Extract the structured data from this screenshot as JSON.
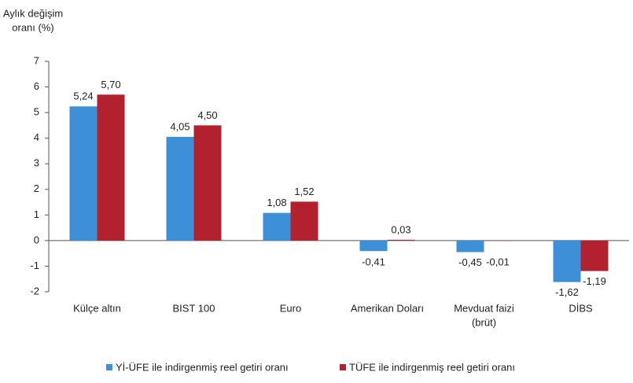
{
  "chart_data": {
    "type": "bar",
    "ylabel": [
      "Aylık değişim",
      "oranı (%)"
    ],
    "categories": [
      [
        "Külçe altın"
      ],
      [
        "BIST 100"
      ],
      [
        "Euro"
      ],
      [
        "Amerikan Doları"
      ],
      [
        "Mevduat faizi",
        "(brüt)"
      ],
      [
        "DİBS"
      ]
    ],
    "series": [
      {
        "name": "Yİ-ÜFE ile indirgenmiş reel getiri oranı",
        "color": "#3d8fd8",
        "values": [
          5.24,
          4.05,
          1.08,
          -0.41,
          -0.45,
          -1.62
        ],
        "value_labels": [
          "5,24",
          "4,05",
          "1,08",
          "-0,41",
          "-0,45",
          "-1,62"
        ]
      },
      {
        "name": "TÜFE ile indirgenmiş reel getiri oranı",
        "color": "#b3212f",
        "values": [
          5.7,
          4.5,
          1.52,
          0.03,
          -0.01,
          -1.19
        ],
        "value_labels": [
          "5,70",
          "4,50",
          "1,52",
          "0,03",
          "-0,01",
          "-1,19"
        ]
      }
    ],
    "ylim": [
      -2,
      7
    ],
    "yticks": [
      -2,
      -1,
      0,
      1,
      2,
      3,
      4,
      5,
      6,
      7
    ],
    "legend": "bottom"
  }
}
